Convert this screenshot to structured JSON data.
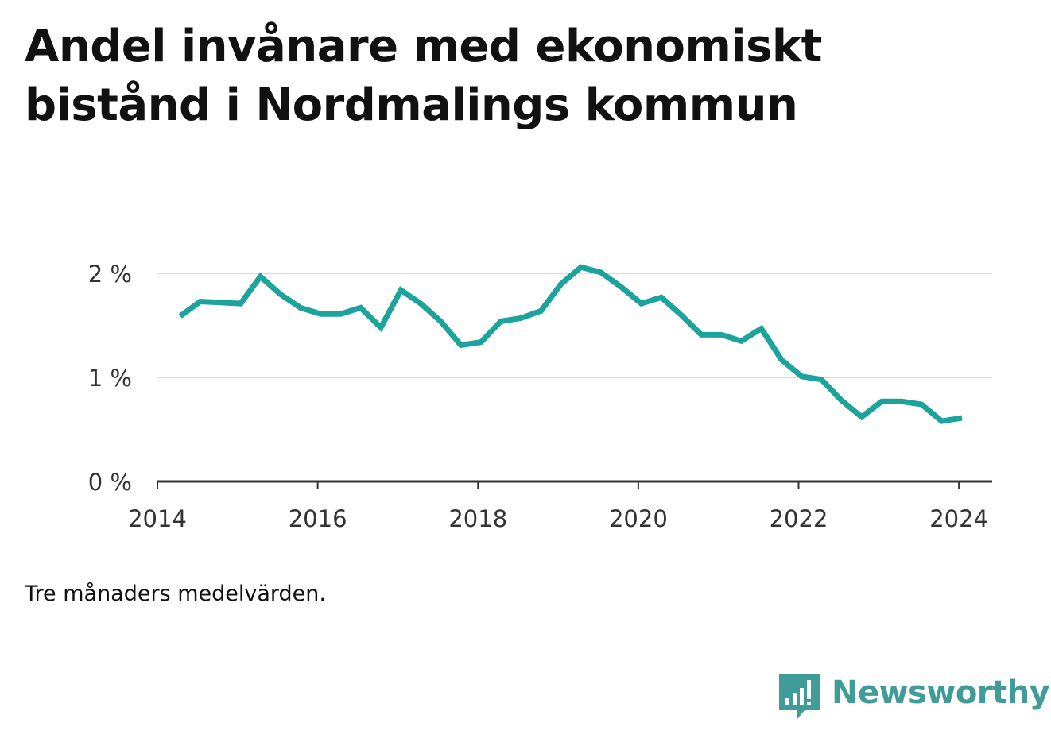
{
  "title": "Andel invånare med ekonomiskt bistånd i Nordmalings kommun",
  "note": "Tre månaders medelvärden.",
  "brand": {
    "name": "Newsworthy",
    "icon": "newsworthy-logo-icon",
    "color": "#3f9c98"
  },
  "chart_data": {
    "type": "line",
    "title": "Andel invånare med ekonomiskt bistånd i Nordmalings kommun",
    "xlabel": "",
    "ylabel": "",
    "x_ticks": [
      "2014",
      "2016",
      "2018",
      "2020",
      "2022",
      "2024"
    ],
    "y_ticks": [
      {
        "value": 0,
        "label": "0 %"
      },
      {
        "value": 1,
        "label": "1 %"
      },
      {
        "value": 2,
        "label": "2 %"
      }
    ],
    "xlim": [
      "2014-01-01",
      "2024-06-01"
    ],
    "ylim": [
      0,
      2.2
    ],
    "grid": true,
    "line_color": "#1ba39c",
    "series": [
      {
        "points": [
          {
            "x": "2014-04-15",
            "y": 1.59
          },
          {
            "x": "2014-07-15",
            "y": 1.73
          },
          {
            "x": "2014-10-15",
            "y": 1.72
          },
          {
            "x": "2015-01-15",
            "y": 1.71
          },
          {
            "x": "2015-04-15",
            "y": 1.97
          },
          {
            "x": "2015-07-15",
            "y": 1.8
          },
          {
            "x": "2015-10-15",
            "y": 1.67
          },
          {
            "x": "2016-01-15",
            "y": 1.61
          },
          {
            "x": "2016-04-15",
            "y": 1.61
          },
          {
            "x": "2016-07-15",
            "y": 1.67
          },
          {
            "x": "2016-10-15",
            "y": 1.48
          },
          {
            "x": "2017-01-15",
            "y": 1.84
          },
          {
            "x": "2017-04-15",
            "y": 1.71
          },
          {
            "x": "2017-07-15",
            "y": 1.54
          },
          {
            "x": "2017-10-15",
            "y": 1.31
          },
          {
            "x": "2018-01-15",
            "y": 1.34
          },
          {
            "x": "2018-04-15",
            "y": 1.54
          },
          {
            "x": "2018-07-15",
            "y": 1.57
          },
          {
            "x": "2018-10-15",
            "y": 1.64
          },
          {
            "x": "2019-01-15",
            "y": 1.9
          },
          {
            "x": "2019-04-15",
            "y": 2.06
          },
          {
            "x": "2019-07-15",
            "y": 2.01
          },
          {
            "x": "2019-10-15",
            "y": 1.87
          },
          {
            "x": "2020-01-15",
            "y": 1.71
          },
          {
            "x": "2020-04-15",
            "y": 1.77
          },
          {
            "x": "2020-07-15",
            "y": 1.6
          },
          {
            "x": "2020-10-15",
            "y": 1.41
          },
          {
            "x": "2021-01-15",
            "y": 1.41
          },
          {
            "x": "2021-04-15",
            "y": 1.35
          },
          {
            "x": "2021-07-15",
            "y": 1.47
          },
          {
            "x": "2021-10-15",
            "y": 1.17
          },
          {
            "x": "2022-01-15",
            "y": 1.01
          },
          {
            "x": "2022-04-15",
            "y": 0.98
          },
          {
            "x": "2022-07-15",
            "y": 0.78
          },
          {
            "x": "2022-10-15",
            "y": 0.62
          },
          {
            "x": "2023-01-15",
            "y": 0.77
          },
          {
            "x": "2023-04-15",
            "y": 0.77
          },
          {
            "x": "2023-07-15",
            "y": 0.74
          },
          {
            "x": "2023-10-15",
            "y": 0.58
          },
          {
            "x": "2024-01-15",
            "y": 0.61
          }
        ]
      }
    ]
  }
}
